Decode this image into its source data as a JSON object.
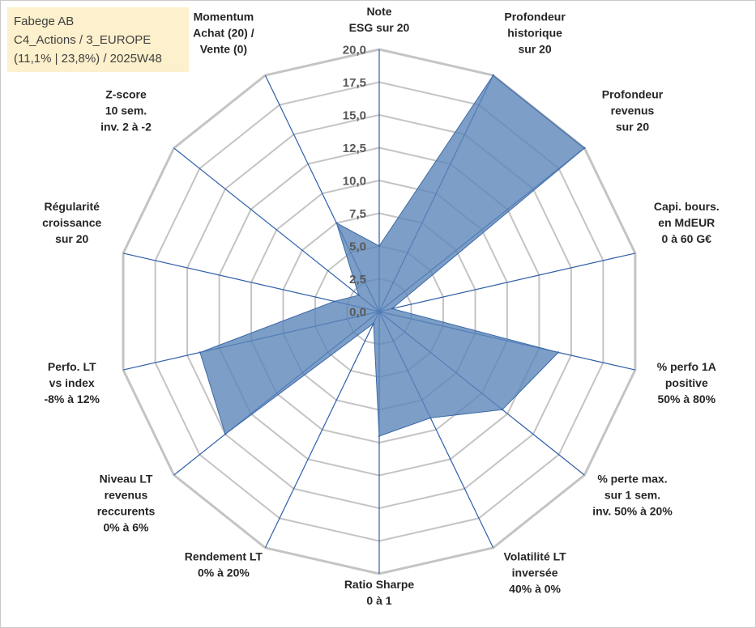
{
  "info": {
    "line1": "Fabege AB",
    "line2": "C4_Actions / 3_EUROPE",
    "line3": "(11,1% | 23,8%) / 2025W48"
  },
  "colors": {
    "fill": "#5b86b9",
    "stroke": "#3c6aa8",
    "grid": "#c4c4c4",
    "spoke": "#2f5ea8",
    "info_bg": "#fdf0cc"
  },
  "chart_data": {
    "type": "radar",
    "rmin": 0,
    "rmax": 20,
    "ticks": [
      "0,0",
      "2,5",
      "5,0",
      "7,5",
      "10,0",
      "12,5",
      "15,0",
      "17,5",
      "20,0"
    ],
    "tick_values": [
      0,
      2.5,
      5,
      7.5,
      10,
      12.5,
      15,
      17.5,
      20
    ],
    "grid": true,
    "axes": [
      [
        "Note",
        "ESG sur 20"
      ],
      [
        "Profondeur",
        "historique",
        "sur 20"
      ],
      [
        "Profondeur",
        "revenus",
        "sur 20"
      ],
      [
        "Capi. bours.",
        "en MdEUR",
        "0 à 60 G€"
      ],
      [
        "% perfo 1A",
        "positive",
        "50% à 80%"
      ],
      [
        "% perte max.",
        "sur 1 sem.",
        "inv. 50% à 20%"
      ],
      [
        "Volatilité LT",
        "inversée",
        "40% à 0%"
      ],
      [
        "Ratio Sharpe",
        "0 à 1"
      ],
      [
        "Rendement LT",
        "0% à 20%"
      ],
      [
        "Niveau LT",
        "revenus",
        "reccurents",
        "0% à 6%"
      ],
      [
        "Perfo. LT",
        "vs index",
        "-8% à 12%"
      ],
      [
        "Régularité",
        "croissance",
        "sur 20"
      ],
      [
        "Z-score",
        "10 sem.",
        "inv. 2 à -2"
      ],
      [
        "Momentum",
        "Achat (20) /",
        "Vente (0)"
      ]
    ],
    "series": [
      {
        "values": [
          5.0,
          20.0,
          20.0,
          1.0,
          14.0,
          12.0,
          9.0,
          9.5,
          1.0,
          15.0,
          14.0,
          3.5,
          2.0,
          7.5
        ]
      }
    ]
  }
}
